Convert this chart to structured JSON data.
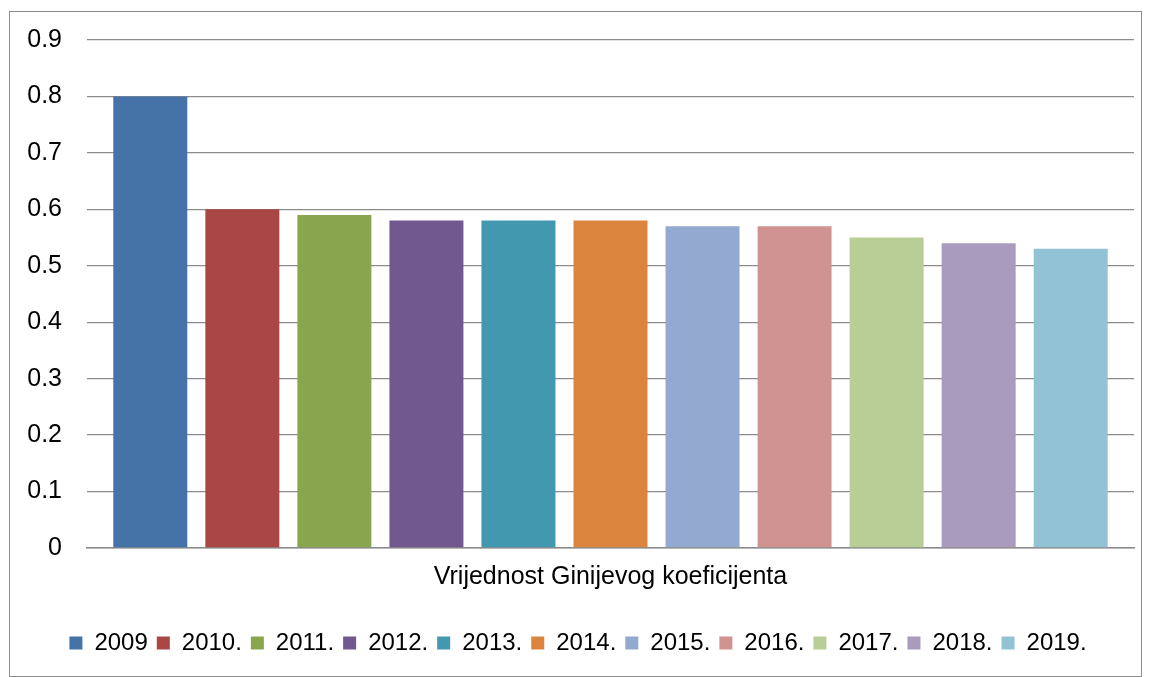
{
  "chart_data": {
    "type": "bar",
    "categories": [
      "Vrijednost Ginijevog koeficijenta"
    ],
    "series": [
      {
        "name": "2009",
        "color": "#4572a7",
        "values": [
          0.8
        ]
      },
      {
        "name": "2010.",
        "color": "#aa4643",
        "values": [
          0.6
        ]
      },
      {
        "name": "2011.",
        "color": "#89a54e",
        "values": [
          0.59
        ]
      },
      {
        "name": "2012.",
        "color": "#71588f",
        "values": [
          0.58
        ]
      },
      {
        "name": "2013.",
        "color": "#4198af",
        "values": [
          0.58
        ]
      },
      {
        "name": "2014.",
        "color": "#db843d",
        "values": [
          0.58
        ]
      },
      {
        "name": "2015.",
        "color": "#93a9cf",
        "values": [
          0.57
        ]
      },
      {
        "name": "2016.",
        "color": "#d19392",
        "values": [
          0.57
        ]
      },
      {
        "name": "2017.",
        "color": "#b9cd96",
        "values": [
          0.55
        ]
      },
      {
        "name": "2018.",
        "color": "#a99bbd",
        "values": [
          0.54
        ]
      },
      {
        "name": "2019.",
        "color": "#91c3d5",
        "values": [
          0.53
        ]
      }
    ],
    "ylim": [
      0,
      0.9
    ],
    "yticks": [
      0,
      0.1,
      0.2,
      0.3,
      0.4,
      0.5,
      0.6,
      0.7,
      0.8,
      0.9
    ],
    "grid": "y",
    "legend": "bottom"
  }
}
